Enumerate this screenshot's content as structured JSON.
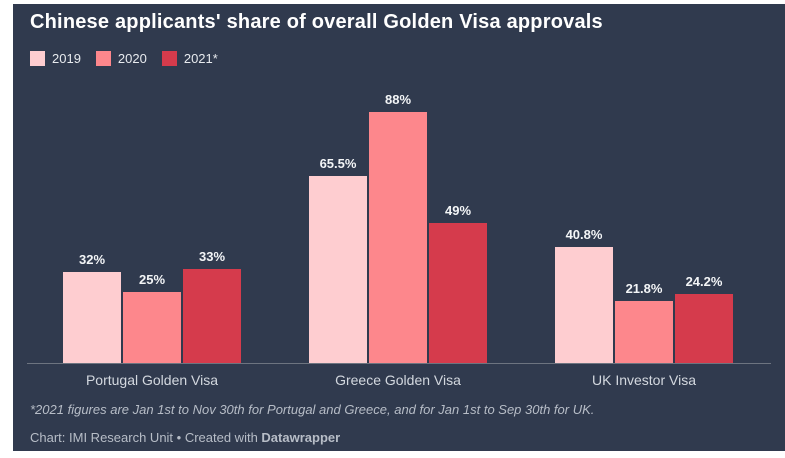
{
  "page": {
    "background": "#ffffff",
    "card_background": "#303a4e",
    "axis_line_color": "#6d7480"
  },
  "header": {
    "title": "Chinese applicants' share of overall Golden Visa approvals"
  },
  "legend": [
    {
      "label": "2019",
      "color": "#fecdd0"
    },
    {
      "label": "2020",
      "color": "#fd878c"
    },
    {
      "label": "2021*",
      "color": "#d53b4c"
    }
  ],
  "chart_data": {
    "type": "bar",
    "title": "Chinese applicants' share of overall Golden Visa approvals",
    "categories": [
      "Portugal Golden Visa",
      "Greece Golden Visa",
      "UK Investor Visa"
    ],
    "series": [
      {
        "name": "2019",
        "color": "#fecdd0",
        "values": [
          32,
          65.5,
          40.8
        ],
        "labels": [
          "32%",
          "65.5%",
          "40.8%"
        ]
      },
      {
        "name": "2020",
        "color": "#fd878c",
        "values": [
          25,
          88,
          21.8
        ],
        "labels": [
          "25%",
          "88%",
          "21.8%"
        ]
      },
      {
        "name": "2021*",
        "color": "#d53b4c",
        "values": [
          33,
          49,
          24.2
        ],
        "labels": [
          "33%",
          "49%",
          "24.2%"
        ]
      }
    ],
    "xlabel": "",
    "ylabel": "",
    "ylim": [
      0,
      98
    ],
    "value_suffix": "%",
    "grid": false,
    "legend_position": "top-left",
    "value_labels": "above-bars"
  },
  "footnote": "*2021 figures are Jan 1st to Nov 30th for Portugal and Greece, and for Jan 1st to Sep 30th for UK.",
  "credit": {
    "prefix": "Chart: IMI Research Unit • Created with ",
    "brand": "Datawrapper"
  }
}
